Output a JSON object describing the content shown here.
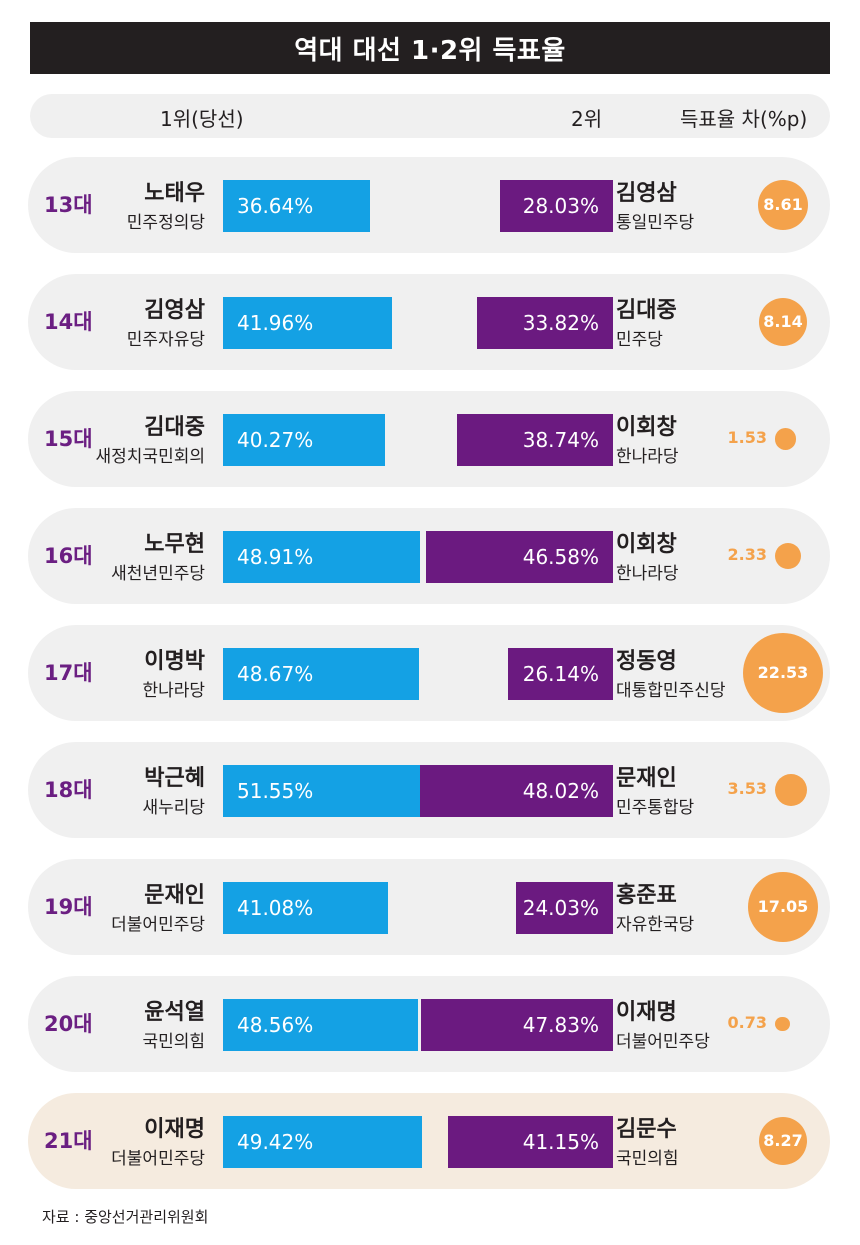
{
  "title": "역대 대선 1·2위 득표율",
  "headers": {
    "first": "1위(당선)",
    "second": "2위",
    "diff": "득표율 차(%p)"
  },
  "source": "자료 : 중앙선거관리위원회",
  "colors": {
    "first_bar": "#14a1e4",
    "second_bar": "#6b1a80",
    "diff": "#f4a24b",
    "generation": "#6b1f82",
    "row_bg": "#f0f0f0",
    "highlight_bg": "#f5ebdf"
  },
  "chart_data": {
    "type": "bar",
    "title": "역대 대선 1·2위 득표율",
    "categories": [
      "13대",
      "14대",
      "15대",
      "16대",
      "17대",
      "18대",
      "19대",
      "20대",
      "21대"
    ],
    "series": [
      {
        "name": "1위(당선)",
        "values": [
          36.64,
          41.96,
          40.27,
          48.91,
          48.67,
          51.55,
          41.08,
          48.56,
          49.42
        ]
      },
      {
        "name": "2위",
        "values": [
          28.03,
          33.82,
          38.74,
          46.58,
          26.14,
          48.02,
          24.03,
          47.83,
          41.15
        ]
      },
      {
        "name": "득표율 차(%p)",
        "values": [
          8.61,
          8.14,
          1.53,
          2.33,
          22.53,
          3.53,
          17.05,
          0.73,
          8.27
        ]
      }
    ],
    "rows": [
      {
        "gen": "13대",
        "winner": "노태우",
        "winner_party": "민주정의당",
        "winner_label": "36.64%",
        "winner_pct": 36.64,
        "runner": "김영삼",
        "runner_party": "통일민주당",
        "runner_label": "28.03%",
        "runner_pct": 28.03,
        "diff_label": "8.61",
        "diff": 8.61,
        "highlight": false
      },
      {
        "gen": "14대",
        "winner": "김영삼",
        "winner_party": "민주자유당",
        "winner_label": "41.96%",
        "winner_pct": 41.96,
        "runner": "김대중",
        "runner_party": "민주당",
        "runner_label": "33.82%",
        "runner_pct": 33.82,
        "diff_label": "8.14",
        "diff": 8.14,
        "highlight": false
      },
      {
        "gen": "15대",
        "winner": "김대중",
        "winner_party": "새정치국민회의",
        "winner_label": "40.27%",
        "winner_pct": 40.27,
        "runner": "이회창",
        "runner_party": "한나라당",
        "runner_label": "38.74%",
        "runner_pct": 38.74,
        "diff_label": "1.53",
        "diff": 1.53,
        "highlight": false
      },
      {
        "gen": "16대",
        "winner": "노무현",
        "winner_party": "새천년민주당",
        "winner_label": "48.91%",
        "winner_pct": 48.91,
        "runner": "이회창",
        "runner_party": "한나라당",
        "runner_label": "46.58%",
        "runner_pct": 46.58,
        "diff_label": "2.33",
        "diff": 2.33,
        "highlight": false
      },
      {
        "gen": "17대",
        "winner": "이명박",
        "winner_party": "한나라당",
        "winner_label": "48.67%",
        "winner_pct": 48.67,
        "runner": "정동영",
        "runner_party": "대통합민주신당",
        "runner_label": "26.14%",
        "runner_pct": 26.14,
        "diff_label": "22.53",
        "diff": 22.53,
        "highlight": false
      },
      {
        "gen": "18대",
        "winner": "박근혜",
        "winner_party": "새누리당",
        "winner_label": "51.55%",
        "winner_pct": 51.55,
        "runner": "문재인",
        "runner_party": "민주통합당",
        "runner_label": "48.02%",
        "runner_pct": 48.02,
        "diff_label": "3.53",
        "diff": 3.53,
        "highlight": false
      },
      {
        "gen": "19대",
        "winner": "문재인",
        "winner_party": "더불어민주당",
        "winner_label": "41.08%",
        "winner_pct": 41.08,
        "runner": "홍준표",
        "runner_party": "자유한국당",
        "runner_label": "24.03%",
        "runner_pct": 24.03,
        "diff_label": "17.05",
        "diff": 17.05,
        "highlight": false
      },
      {
        "gen": "20대",
        "winner": "윤석열",
        "winner_party": "국민의힘",
        "winner_label": "48.56%",
        "winner_pct": 48.56,
        "runner": "이재명",
        "runner_party": "더불어민주당",
        "runner_label": "47.83%",
        "runner_pct": 47.83,
        "diff_label": "0.73",
        "diff": 0.73,
        "highlight": false
      },
      {
        "gen": "21대",
        "winner": "이재명",
        "winner_party": "더불어민주당",
        "winner_label": "49.42%",
        "winner_pct": 49.42,
        "runner": "김문수",
        "runner_party": "국민의힘",
        "runner_label": "41.15%",
        "runner_pct": 41.15,
        "diff_label": "8.27",
        "diff": 8.27,
        "highlight": true
      }
    ]
  }
}
